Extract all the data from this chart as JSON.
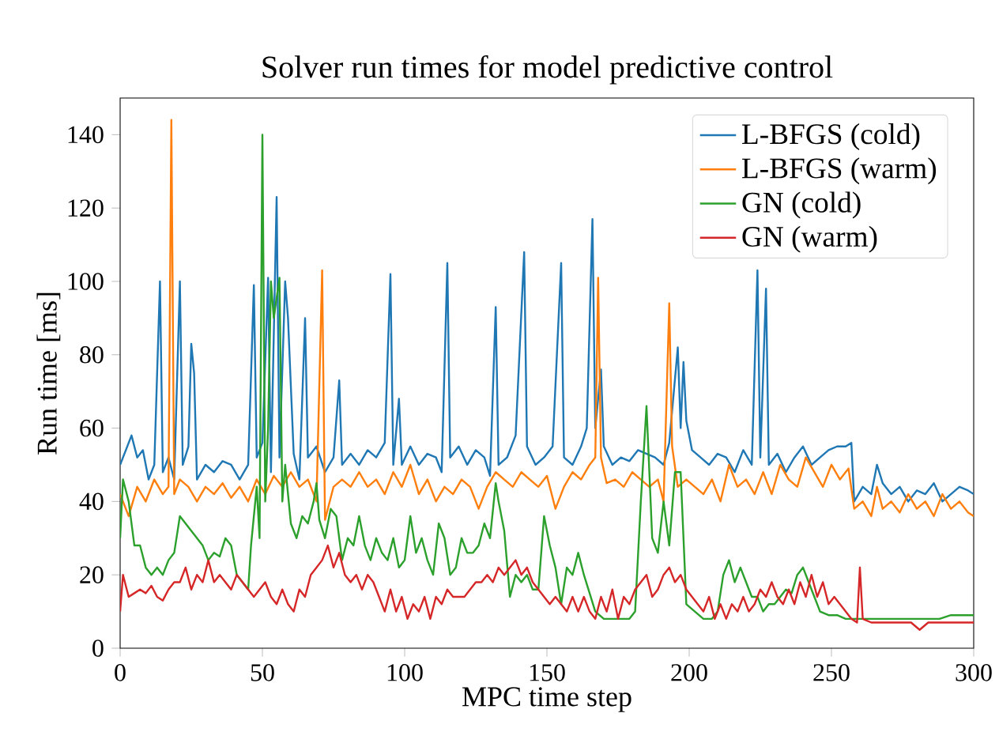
{
  "chart_data": {
    "type": "line",
    "title": "Solver run times for model predictive control",
    "xlabel": "MPC time step",
    "ylabel": "Run time [ms]",
    "xlim": [
      0,
      300
    ],
    "xticks": [
      0,
      50,
      100,
      150,
      200,
      250,
      300
    ],
    "ylim": [
      0,
      150
    ],
    "yticks": [
      0,
      20,
      40,
      60,
      80,
      100,
      120,
      140
    ],
    "legend": "top right",
    "series": [
      {
        "name": "L-BFGS (cold)",
        "color": "#1f77b4",
        "x": [
          0,
          2,
          4,
          6,
          8,
          10,
          12,
          14,
          15,
          17,
          19,
          21,
          22,
          24,
          25,
          26,
          27,
          30,
          33,
          36,
          39,
          42,
          45,
          47,
          48,
          50,
          52,
          53,
          55,
          56,
          58,
          59,
          61,
          63,
          65,
          66,
          69,
          72,
          75,
          77,
          78,
          81,
          84,
          87,
          90,
          93,
          95,
          96,
          98,
          99,
          102,
          105,
          108,
          111,
          113,
          115,
          116,
          119,
          122,
          125,
          128,
          130,
          132,
          133,
          136,
          139,
          142,
          143,
          146,
          149,
          152,
          155,
          156,
          159,
          162,
          164,
          166,
          167,
          169,
          170,
          173,
          176,
          179,
          182,
          185,
          188,
          191,
          193,
          196,
          197,
          198,
          199,
          201,
          204,
          207,
          210,
          213,
          216,
          219,
          222,
          224,
          225,
          227,
          228,
          231,
          234,
          237,
          240,
          243,
          246,
          249,
          252,
          255,
          257,
          258,
          261,
          264,
          266,
          268,
          271,
          274,
          277,
          280,
          283,
          286,
          289,
          292,
          295,
          298,
          300
        ],
        "values": [
          50,
          54,
          58,
          52,
          54,
          46,
          50,
          100,
          48,
          52,
          46,
          100,
          50,
          55,
          83,
          75,
          46,
          50,
          48,
          51,
          50,
          46,
          50,
          99,
          52,
          56,
          101,
          48,
          123,
          52,
          100,
          90,
          53,
          46,
          90,
          52,
          55,
          48,
          52,
          73,
          50,
          53,
          50,
          54,
          52,
          56,
          102,
          50,
          68,
          50,
          55,
          50,
          53,
          52,
          48,
          105,
          52,
          55,
          50,
          54,
          52,
          47,
          93,
          50,
          52,
          58,
          108,
          55,
          50,
          52,
          55,
          105,
          52,
          50,
          55,
          60,
          117,
          60,
          76,
          55,
          50,
          52,
          51,
          54,
          53,
          52,
          50,
          56,
          82,
          60,
          78,
          62,
          54,
          52,
          50,
          53,
          52,
          48,
          54,
          50,
          103,
          52,
          98,
          50,
          53,
          48,
          52,
          55,
          50,
          52,
          54,
          55,
          55,
          56,
          40,
          44,
          42,
          50,
          45,
          42,
          44,
          40,
          43,
          42,
          45,
          40,
          42,
          44,
          43,
          42
        ]
      },
      {
        "name": "L-BFGS (warm)",
        "color": "#ff7f0e",
        "x": [
          0,
          3,
          6,
          9,
          12,
          15,
          17,
          18,
          19,
          21,
          24,
          27,
          30,
          33,
          36,
          39,
          42,
          45,
          48,
          51,
          54,
          57,
          60,
          63,
          66,
          69,
          71,
          72,
          75,
          78,
          81,
          84,
          87,
          90,
          93,
          96,
          99,
          102,
          105,
          108,
          111,
          114,
          117,
          120,
          123,
          126,
          129,
          132,
          135,
          138,
          141,
          144,
          147,
          150,
          153,
          156,
          159,
          162,
          165,
          167,
          168,
          169,
          171,
          174,
          177,
          180,
          183,
          186,
          189,
          191,
          193,
          194,
          196,
          199,
          202,
          205,
          208,
          211,
          214,
          217,
          220,
          223,
          226,
          229,
          232,
          235,
          238,
          241,
          244,
          247,
          250,
          253,
          256,
          258,
          261,
          264,
          266,
          268,
          271,
          274,
          277,
          280,
          283,
          286,
          289,
          292,
          295,
          298,
          300
        ],
        "values": [
          42,
          36,
          44,
          40,
          46,
          42,
          44,
          144,
          42,
          46,
          44,
          40,
          44,
          42,
          45,
          41,
          44,
          40,
          46,
          42,
          47,
          44,
          48,
          44,
          46,
          40,
          103,
          35,
          44,
          46,
          44,
          48,
          44,
          46,
          42,
          48,
          44,
          50,
          42,
          46,
          40,
          44,
          42,
          46,
          44,
          38,
          44,
          48,
          46,
          44,
          48,
          46,
          44,
          47,
          38,
          44,
          48,
          46,
          50,
          52,
          101,
          52,
          45,
          46,
          44,
          48,
          46,
          44,
          46,
          40,
          94,
          55,
          44,
          46,
          44,
          42,
          46,
          40,
          50,
          44,
          46,
          42,
          48,
          42,
          50,
          46,
          44,
          52,
          48,
          44,
          50,
          46,
          49,
          38,
          40,
          36,
          44,
          38,
          40,
          37,
          42,
          38,
          40,
          36,
          42,
          38,
          40,
          37,
          36
        ]
      },
      {
        "name": "GN (cold)",
        "color": "#2ca02c",
        "x": [
          0,
          1,
          3,
          5,
          7,
          9,
          11,
          13,
          15,
          17,
          19,
          21,
          23,
          25,
          27,
          29,
          31,
          33,
          35,
          37,
          39,
          41,
          43,
          45,
          46,
          48,
          49,
          50,
          51,
          52,
          53,
          54,
          56,
          57,
          58,
          60,
          62,
          64,
          66,
          68,
          69,
          70,
          72,
          74,
          76,
          78,
          80,
          82,
          84,
          86,
          88,
          90,
          92,
          94,
          96,
          98,
          100,
          102,
          104,
          106,
          108,
          110,
          112,
          114,
          116,
          118,
          120,
          122,
          124,
          126,
          128,
          130,
          132,
          133,
          135,
          137,
          139,
          141,
          143,
          145,
          147,
          149,
          151,
          153,
          155,
          157,
          159,
          161,
          163,
          165,
          167,
          170,
          173,
          176,
          179,
          181,
          183,
          185,
          187,
          189,
          191,
          193,
          195,
          197,
          198,
          199,
          202,
          205,
          208,
          210,
          212,
          214,
          216,
          218,
          220,
          222,
          224,
          226,
          228,
          230,
          232,
          234,
          236,
          238,
          240,
          242,
          244,
          246,
          249,
          252,
          255,
          258,
          262,
          270,
          280,
          288,
          292,
          296,
          300
        ],
        "values": [
          30,
          46,
          40,
          28,
          28,
          22,
          20,
          22,
          20,
          24,
          26,
          36,
          34,
          32,
          30,
          28,
          24,
          26,
          25,
          30,
          28,
          20,
          18,
          16,
          28,
          44,
          30,
          140,
          40,
          60,
          100,
          90,
          101,
          40,
          50,
          34,
          30,
          36,
          34,
          40,
          45,
          35,
          30,
          38,
          36,
          24,
          30,
          28,
          36,
          28,
          24,
          30,
          26,
          24,
          30,
          22,
          24,
          36,
          26,
          30,
          24,
          20,
          34,
          30,
          20,
          22,
          30,
          26,
          26,
          28,
          34,
          30,
          45,
          40,
          32,
          14,
          20,
          18,
          20,
          16,
          16,
          36,
          28,
          22,
          12,
          22,
          20,
          26,
          20,
          15,
          10,
          8,
          8,
          8,
          8,
          10,
          40,
          66,
          30,
          26,
          40,
          28,
          48,
          48,
          30,
          12,
          10,
          8,
          8,
          10,
          20,
          24,
          18,
          22,
          18,
          14,
          14,
          10,
          12,
          12,
          14,
          16,
          15,
          20,
          22,
          18,
          14,
          10,
          9,
          9,
          8,
          8,
          8,
          8,
          8,
          8,
          9,
          9,
          9
        ]
      },
      {
        "name": "GN (warm)",
        "color": "#d62728",
        "x": [
          0,
          1,
          3,
          5,
          7,
          9,
          11,
          13,
          15,
          17,
          19,
          21,
          23,
          25,
          27,
          29,
          31,
          33,
          35,
          37,
          39,
          41,
          43,
          45,
          47,
          49,
          51,
          53,
          55,
          57,
          59,
          61,
          63,
          65,
          67,
          69,
          71,
          73,
          75,
          77,
          79,
          81,
          83,
          85,
          87,
          89,
          91,
          93,
          95,
          97,
          99,
          101,
          103,
          105,
          107,
          109,
          111,
          113,
          115,
          117,
          119,
          121,
          123,
          125,
          127,
          129,
          131,
          133,
          135,
          137,
          139,
          141,
          143,
          145,
          147,
          149,
          151,
          153,
          155,
          157,
          159,
          161,
          163,
          165,
          167,
          169,
          171,
          173,
          175,
          177,
          179,
          181,
          183,
          185,
          187,
          189,
          191,
          193,
          195,
          197,
          199,
          201,
          203,
          205,
          207,
          209,
          211,
          213,
          215,
          217,
          219,
          221,
          223,
          225,
          227,
          229,
          231,
          233,
          235,
          237,
          239,
          241,
          243,
          245,
          247,
          249,
          251,
          253,
          255,
          257,
          259,
          260,
          261,
          264,
          270,
          278,
          281,
          284,
          290,
          300
        ],
        "values": [
          10,
          20,
          14,
          15,
          16,
          15,
          17,
          14,
          13,
          16,
          18,
          18,
          22,
          16,
          20,
          18,
          24,
          18,
          20,
          18,
          16,
          20,
          18,
          16,
          14,
          16,
          18,
          14,
          12,
          16,
          12,
          10,
          16,
          14,
          20,
          22,
          24,
          28,
          22,
          26,
          20,
          18,
          20,
          16,
          20,
          18,
          14,
          10,
          16,
          10,
          14,
          8,
          12,
          10,
          14,
          8,
          14,
          12,
          16,
          14,
          14,
          14,
          16,
          18,
          18,
          20,
          18,
          22,
          20,
          22,
          24,
          20,
          22,
          18,
          16,
          14,
          12,
          14,
          12,
          10,
          14,
          10,
          14,
          10,
          8,
          14,
          10,
          16,
          8,
          14,
          12,
          16,
          18,
          20,
          14,
          16,
          20,
          22,
          18,
          20,
          16,
          14,
          12,
          10,
          14,
          8,
          12,
          8,
          12,
          10,
          14,
          10,
          12,
          16,
          14,
          18,
          14,
          12,
          16,
          12,
          18,
          14,
          20,
          14,
          18,
          12,
          14,
          12,
          10,
          8,
          7,
          22,
          8,
          7,
          7,
          7,
          5,
          7,
          7,
          7
        ]
      }
    ]
  }
}
